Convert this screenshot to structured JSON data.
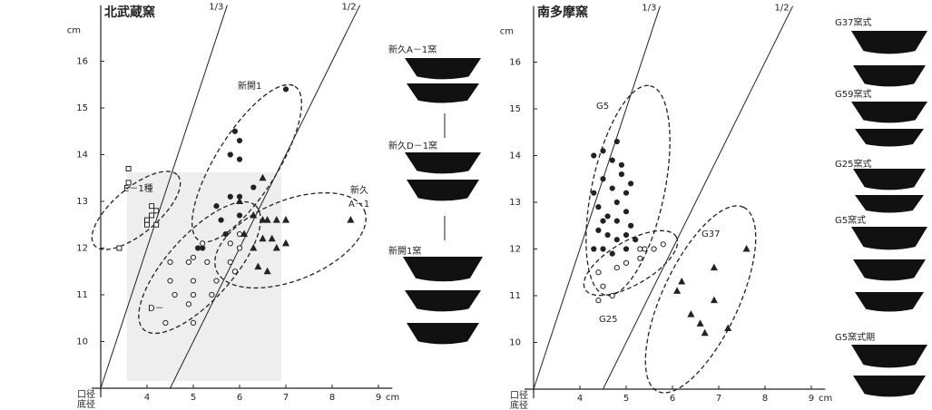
{
  "chart_data": [
    {
      "type": "scatter",
      "title": "北武蔵窯",
      "xlabel": "底径",
      "ylabel": "口径",
      "x_unit": "cm",
      "y_unit": "cm",
      "xlim": [
        3,
        9.3
      ],
      "ylim": [
        9,
        17.2
      ],
      "xticks": [
        4,
        5,
        6,
        7,
        8,
        9
      ],
      "yticks": [
        10,
        11,
        12,
        13,
        14,
        15,
        16
      ],
      "ref_lines": [
        {
          "value": 0.3333,
          "label": "1/3"
        },
        {
          "value": 0.5,
          "label": "1/2"
        }
      ],
      "annotations": [
        "E－1種",
        "新開1",
        "D－",
        "新久",
        "A－1"
      ],
      "vessel_labels": [
        "新久A－1窯",
        "新久D－1窯",
        "新開1窯"
      ],
      "series": [
        {
          "marker": "square",
          "color": "#222",
          "x": [
            3.6,
            3.6,
            4.0,
            4.0,
            4.1,
            4.1,
            4.2,
            3.4,
            4.2
          ],
          "values": [
            13.7,
            13.4,
            12.6,
            12.5,
            12.7,
            12.9,
            12.5,
            12.0,
            12.8
          ]
        },
        {
          "marker": "dot",
          "color": "#222",
          "x": [
            7.0,
            5.9,
            6.0,
            5.8,
            6.0,
            5.5,
            5.8,
            6.0,
            6.3,
            5.6,
            5.1,
            5.2,
            6.0,
            5.7
          ],
          "values": [
            15.4,
            14.5,
            14.3,
            14.0,
            13.9,
            12.9,
            13.1,
            13.1,
            13.3,
            12.6,
            12.0,
            12.0,
            12.7,
            12.3
          ]
        },
        {
          "marker": "circle",
          "color": "#222",
          "x": [
            4.5,
            4.5,
            4.6,
            4.9,
            5.0,
            5.0,
            5.0,
            5.2,
            5.3,
            5.5,
            5.4,
            5.8,
            5.8,
            5.9,
            6.0,
            4.4,
            4.9,
            5.0,
            6.0
          ],
          "values": [
            11.7,
            11.3,
            11.0,
            11.7,
            11.3,
            11.0,
            11.8,
            12.1,
            11.7,
            11.3,
            11.0,
            12.1,
            11.7,
            11.5,
            12.3,
            10.4,
            10.8,
            10.4,
            12.0
          ]
        },
        {
          "marker": "triangle",
          "color": "#222",
          "x": [
            6.3,
            6.5,
            6.6,
            6.8,
            7.0,
            6.1,
            6.5,
            6.7,
            6.8,
            7.0,
            6.0,
            6.4,
            6.6,
            8.4,
            6.5,
            6.3
          ],
          "values": [
            12.7,
            12.6,
            12.6,
            12.6,
            12.6,
            12.3,
            12.2,
            12.2,
            12.0,
            12.1,
            13.0,
            11.6,
            11.5,
            12.6,
            13.5,
            12.0
          ]
        }
      ]
    },
    {
      "type": "scatter",
      "title": "南多摩窯",
      "xlabel": "底径",
      "ylabel": "口径",
      "x_unit": "cm",
      "y_unit": "cm",
      "xlim": [
        3,
        9.3
      ],
      "ylim": [
        9,
        17.2
      ],
      "xticks": [
        4,
        5,
        6,
        7,
        8,
        9
      ],
      "yticks": [
        10,
        11,
        12,
        13,
        14,
        15,
        16
      ],
      "ref_lines": [
        {
          "value": 0.3333,
          "label": "1/3"
        },
        {
          "value": 0.5,
          "label": "1/2"
        }
      ],
      "annotations": [
        "G5",
        "G37",
        "G25"
      ],
      "vessel_labels": [
        "G37窯式",
        "G59窯式",
        "G25窯式",
        "G5窯式",
        "G5窯式期"
      ],
      "series": [
        {
          "marker": "dot",
          "color": "#222",
          "x": [
            4.3,
            4.5,
            4.8,
            4.7,
            4.9,
            4.5,
            4.3,
            4.7,
            4.8,
            5.0,
            4.4,
            4.6,
            4.8,
            5.0,
            5.1,
            4.4,
            4.6,
            4.8,
            5.0,
            5.2,
            4.3,
            4.5,
            4.7,
            5.0,
            4.9,
            5.1,
            4.5
          ],
          "values": [
            14.0,
            14.1,
            14.3,
            13.9,
            13.6,
            13.5,
            13.2,
            13.3,
            13.0,
            13.2,
            12.9,
            12.7,
            12.6,
            12.8,
            12.5,
            12.4,
            12.3,
            12.2,
            12.3,
            12.2,
            12.0,
            12.0,
            11.9,
            12.0,
            13.8,
            13.4,
            12.6
          ]
        },
        {
          "marker": "circle",
          "color": "#222",
          "x": [
            4.4,
            4.5,
            4.8,
            5.3,
            5.4,
            5.6,
            5.8,
            4.7,
            4.4,
            5.0,
            5.3
          ],
          "values": [
            11.5,
            11.2,
            11.6,
            12.0,
            12.0,
            12.0,
            12.1,
            11.0,
            10.9,
            11.7,
            11.8
          ]
        },
        {
          "marker": "triangle",
          "color": "#222",
          "x": [
            6.2,
            6.1,
            6.9,
            6.4,
            6.6,
            6.7,
            7.2,
            7.6,
            6.9
          ],
          "values": [
            11.3,
            11.1,
            10.9,
            10.6,
            10.4,
            10.2,
            10.3,
            12.0,
            11.6
          ]
        }
      ]
    }
  ]
}
